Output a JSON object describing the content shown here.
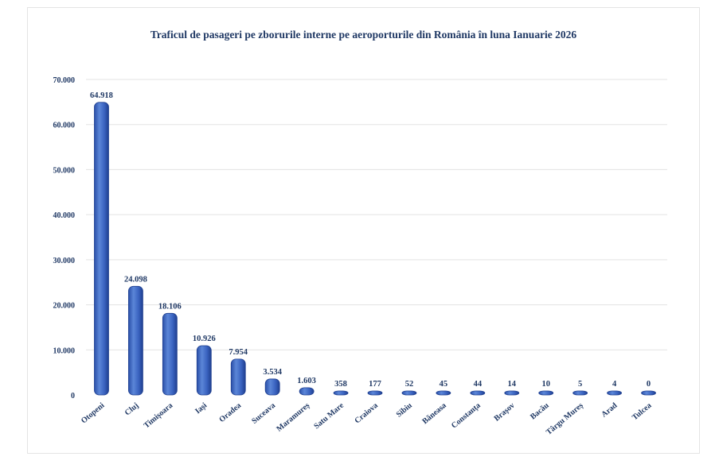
{
  "chart_data": {
    "type": "bar",
    "title": "Traficul de pasageri pe zborurile interne pe aeroporturile din România în luna Ianuarie 2026",
    "xlabel": "",
    "ylabel": "",
    "ylim": [
      0,
      70000
    ],
    "grid": true,
    "legend": "none",
    "bar_color": "#4472c4",
    "bar_color_dark": "#1f3f8f",
    "text_color": "#1f3864",
    "yticks": [
      {
        "value": 0,
        "label": "0"
      },
      {
        "value": 10000,
        "label": "10.000"
      },
      {
        "value": 20000,
        "label": "20.000"
      },
      {
        "value": 30000,
        "label": "30.000"
      },
      {
        "value": 40000,
        "label": "40.000"
      },
      {
        "value": 50000,
        "label": "50.000"
      },
      {
        "value": 60000,
        "label": "60.000"
      },
      {
        "value": 70000,
        "label": "70.000"
      }
    ],
    "categories": [
      "Otopeni",
      "Cluj",
      "Timișoara",
      "Iași",
      "Oradea",
      "Suceava",
      "Maramureș",
      "Satu Mare",
      "Craiova",
      "Sibiu",
      "Băneasa",
      "Constanța",
      "Brașov",
      "Bacău",
      "Târgu Mureș",
      "Arad",
      "Tulcea"
    ],
    "values": [
      64918,
      24098,
      18106,
      10926,
      7954,
      3534,
      1603,
      358,
      177,
      52,
      45,
      44,
      14,
      10,
      5,
      4,
      0
    ],
    "value_labels": [
      "64.918",
      "24.098",
      "18.106",
      "10.926",
      "7.954",
      "3.534",
      "1.603",
      "358",
      "177",
      "52",
      "45",
      "44",
      "14",
      "10",
      "5",
      "4",
      "0"
    ]
  }
}
